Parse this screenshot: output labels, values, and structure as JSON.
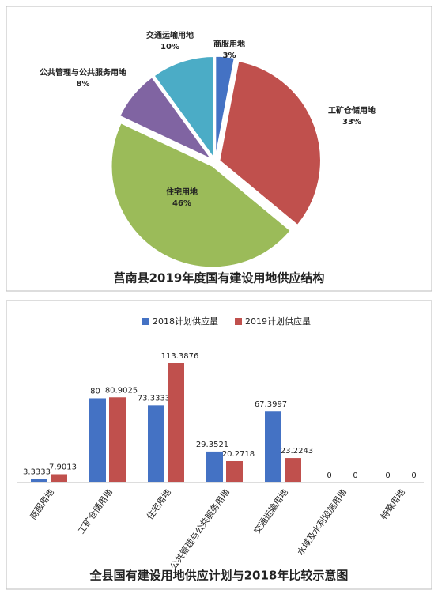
{
  "chart_data": [
    {
      "type": "pie",
      "title": "莒南县2019年度国有建设用地供应结构",
      "categories": [
        "商服用地",
        "工矿仓储用地",
        "住宅用地",
        "公共管理与公共服务用地",
        "交通运输用地"
      ],
      "values": [
        3,
        33,
        46,
        8,
        10
      ],
      "value_labels": [
        "3%",
        "33%",
        "46%",
        "8%",
        "10%"
      ],
      "colors": [
        "#4472c4",
        "#c0504d",
        "#9bbb59",
        "#8064a2",
        "#4bacc6"
      ]
    },
    {
      "type": "bar",
      "title": "全县国有建设用地供应计划与2018年比较示意图",
      "categories": [
        "商服用地",
        "工矿仓储用地",
        "住宅用地",
        "公共管理与公共服务用地",
        "交通运输用地",
        "水域及水利设施用地",
        "特殊用地"
      ],
      "series": [
        {
          "name": "2018计划供应量",
          "color": "#4472c4",
          "values": [
            3.3333,
            80,
            73.3333,
            29.3521,
            67.3997,
            0,
            0
          ]
        },
        {
          "name": "2019计划供应量",
          "color": "#c0504d",
          "values": [
            7.9013,
            80.9025,
            113.3876,
            20.2718,
            23.2243,
            0,
            0
          ]
        }
      ]
    }
  ]
}
